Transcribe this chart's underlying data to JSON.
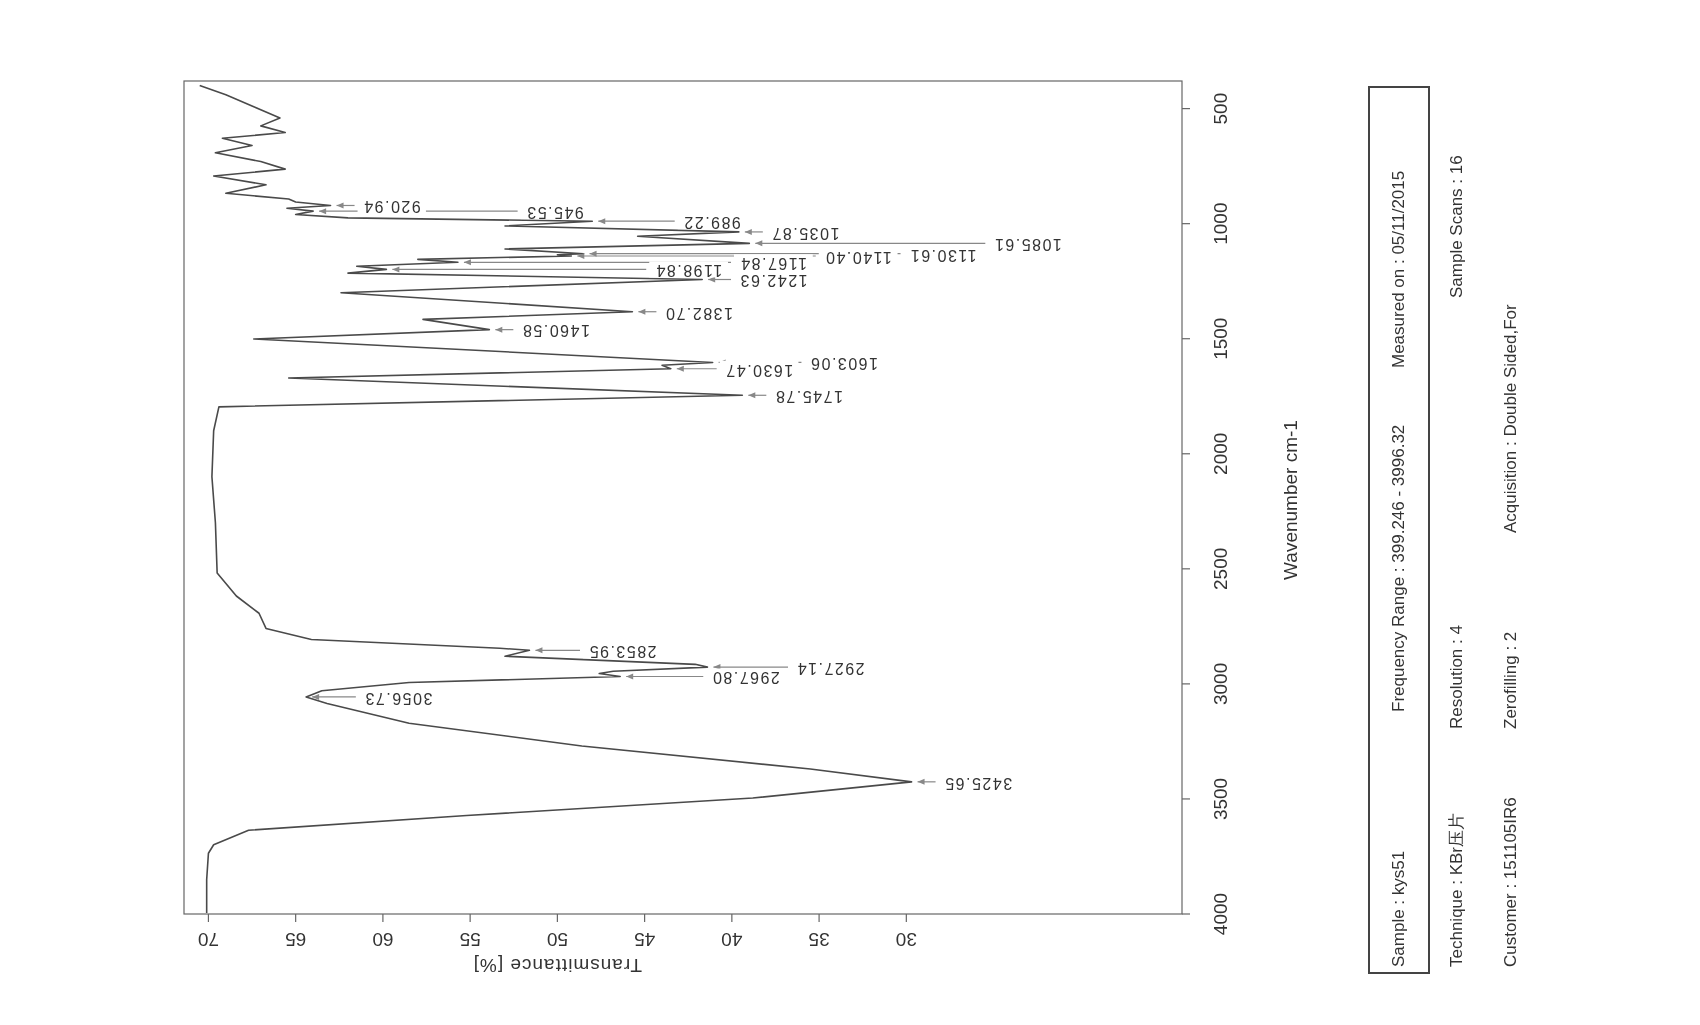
{
  "chart_data": {
    "type": "line",
    "xlabel": "Transmittance [%]",
    "ylabel": "Wavenumber cm-1",
    "color": "#4a4a4a",
    "xlim": [
      71.4,
      14.2
    ],
    "ylim": [
      4000,
      380
    ],
    "xticks": [
      30,
      35,
      40,
      45,
      50,
      55,
      60,
      65,
      70
    ],
    "yticks": [
      500,
      1000,
      1500,
      2000,
      2500,
      3000,
      3500,
      4000
    ],
    "x": [
      70.5,
      69.0,
      67.4,
      65.9,
      67,
      65.6,
      69.2,
      67.5,
      69.6,
      67,
      65.6,
      69.7,
      66.7,
      69.0,
      65.4,
      65.0,
      63.0,
      65.5,
      64.0,
      65.0,
      62.0,
      48.0,
      53,
      39.6,
      45.4,
      39.0,
      53,
      48.5,
      50,
      49.2,
      58,
      55.7,
      61.5,
      59.8,
      62,
      41.7,
      62.4,
      45.7,
      57.7,
      53.9,
      67.4,
      41.1,
      44,
      43.5,
      65.4,
      39.4,
      69.4,
      69.7,
      69.8,
      69.6,
      69.5,
      68.4,
      67.1,
      66.7,
      64.1,
      53.3,
      51.6,
      53,
      42.1,
      41.4,
      46.8,
      47.6,
      46.4,
      58.5,
      63.5,
      64.4,
      63.2,
      58.5,
      48.6,
      35.5,
      29.7,
      38.8,
      55.2,
      67.7,
      69.7,
      70.0,
      70.1,
      70.1
    ],
    "values": [
      400,
      440,
      492,
      541,
      575,
      604,
      629,
      660,
      692,
      730,
      763,
      793,
      831,
      868,
      893,
      906,
      920.94,
      933,
      945.53,
      960,
      975,
      989.22,
      1010,
      1035.87,
      1055,
      1085.61,
      1110,
      1130.61,
      1135,
      1140.4,
      1155,
      1167.84,
      1185,
      1198.84,
      1215,
      1242.63,
      1300,
      1382.7,
      1416,
      1460.58,
      1501,
      1603.06,
      1615,
      1630.47,
      1671,
      1745.78,
      1796,
      1900,
      2100,
      2300,
      2518,
      2618,
      2693,
      2759,
      2807,
      2845,
      2853.95,
      2880,
      2915,
      2927.14,
      2945,
      2955,
      2967.8,
      2994,
      3030,
      3056.73,
      3085,
      3171,
      3270,
      3370,
      3425.65,
      3496,
      3572,
      3636,
      3699,
      3736,
      3850,
      3996
    ],
    "annotations": [
      {
        "text": "920.94",
        "x": 63.0,
        "y": 920.94
      },
      {
        "text": "945.53",
        "x": 64.0,
        "y": 945.53
      },
      {
        "text": "989.22",
        "x": 48.0,
        "y": 989.22
      },
      {
        "text": "1035.87",
        "x": 39.6,
        "y": 1035.87
      },
      {
        "text": "1085.61",
        "x": 39.0,
        "y": 1085.61
      },
      {
        "text": "1130.61",
        "x": 48.5,
        "y": 1130.61
      },
      {
        "text": "1140.40",
        "x": 49.2,
        "y": 1140.4
      },
      {
        "text": "1167.84",
        "x": 55.7,
        "y": 1167.84
      },
      {
        "text": "1198.84",
        "x": 59.8,
        "y": 1198.84
      },
      {
        "text": "1242.63",
        "x": 41.7,
        "y": 1242.63
      },
      {
        "text": "1382.70",
        "x": 45.7,
        "y": 1382.7
      },
      {
        "text": "1460.58",
        "x": 53.9,
        "y": 1460.58
      },
      {
        "text": "1603.06",
        "x": 41.1,
        "y": 1603.06
      },
      {
        "text": "1630.47",
        "x": 43.5,
        "y": 1630.47
      },
      {
        "text": "1745.78",
        "x": 39.4,
        "y": 1745.78
      },
      {
        "text": "2853.95",
        "x": 51.6,
        "y": 2853.95
      },
      {
        "text": "2927.14",
        "x": 41.4,
        "y": 2927.14
      },
      {
        "text": "2967.80",
        "x": 46.4,
        "y": 2967.8
      },
      {
        "text": "3056.73",
        "x": 64.4,
        "y": 3056.73
      },
      {
        "text": "3425.65",
        "x": 29.7,
        "y": 3425.65
      },
      "Sample : kys51",
      "Frequency Range : 399.246 - 3996.32",
      "Measured on : 05/11/2015",
      "Technique : KBr压片",
      "Resolution : 4",
      "Sample Scans : 16",
      "Customer : 151105IR6",
      "Zerofilling : 2",
      "Acquisition : Double Sided,For"
    ]
  }
}
